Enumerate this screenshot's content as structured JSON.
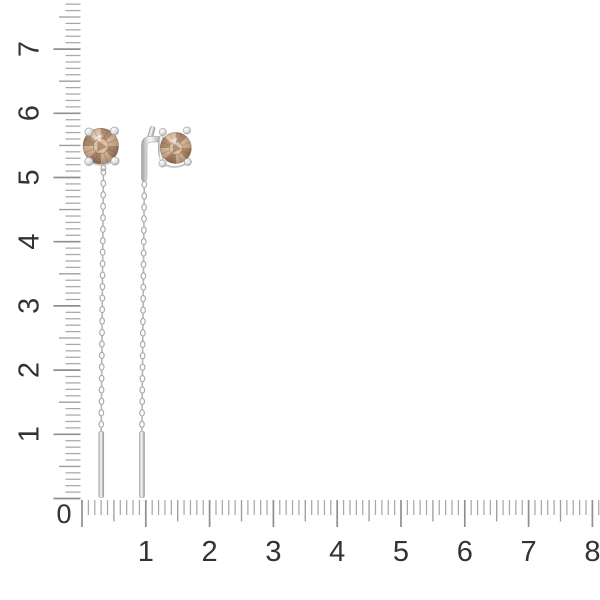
{
  "page": {
    "background": "#ffffff"
  },
  "rulers": {
    "origin_label": "0",
    "vertical": {
      "labels": [
        "1",
        "2",
        "3",
        "4",
        "5",
        "6",
        "7"
      ]
    },
    "horizontal": {
      "labels": [
        "1",
        "2",
        "3",
        "4",
        "5",
        "6",
        "7",
        "8"
      ]
    },
    "tick_color": "#a8a8a8",
    "half_tick_color": "#9e9e9e",
    "major_tick_color": "#8f8f8f",
    "label_color": "#333333"
  },
  "product": {
    "name": "threader-chain-earrings",
    "gemstone": "round champagne stone in four-prong setting",
    "gemstone_color_light": "#e0c2a4",
    "gemstone_color_mid": "#b08a6b",
    "gemstone_color_dark": "#7d5f49",
    "metal_color": "#d9d9d9",
    "metal_edge_color": "#9a9a9a"
  }
}
